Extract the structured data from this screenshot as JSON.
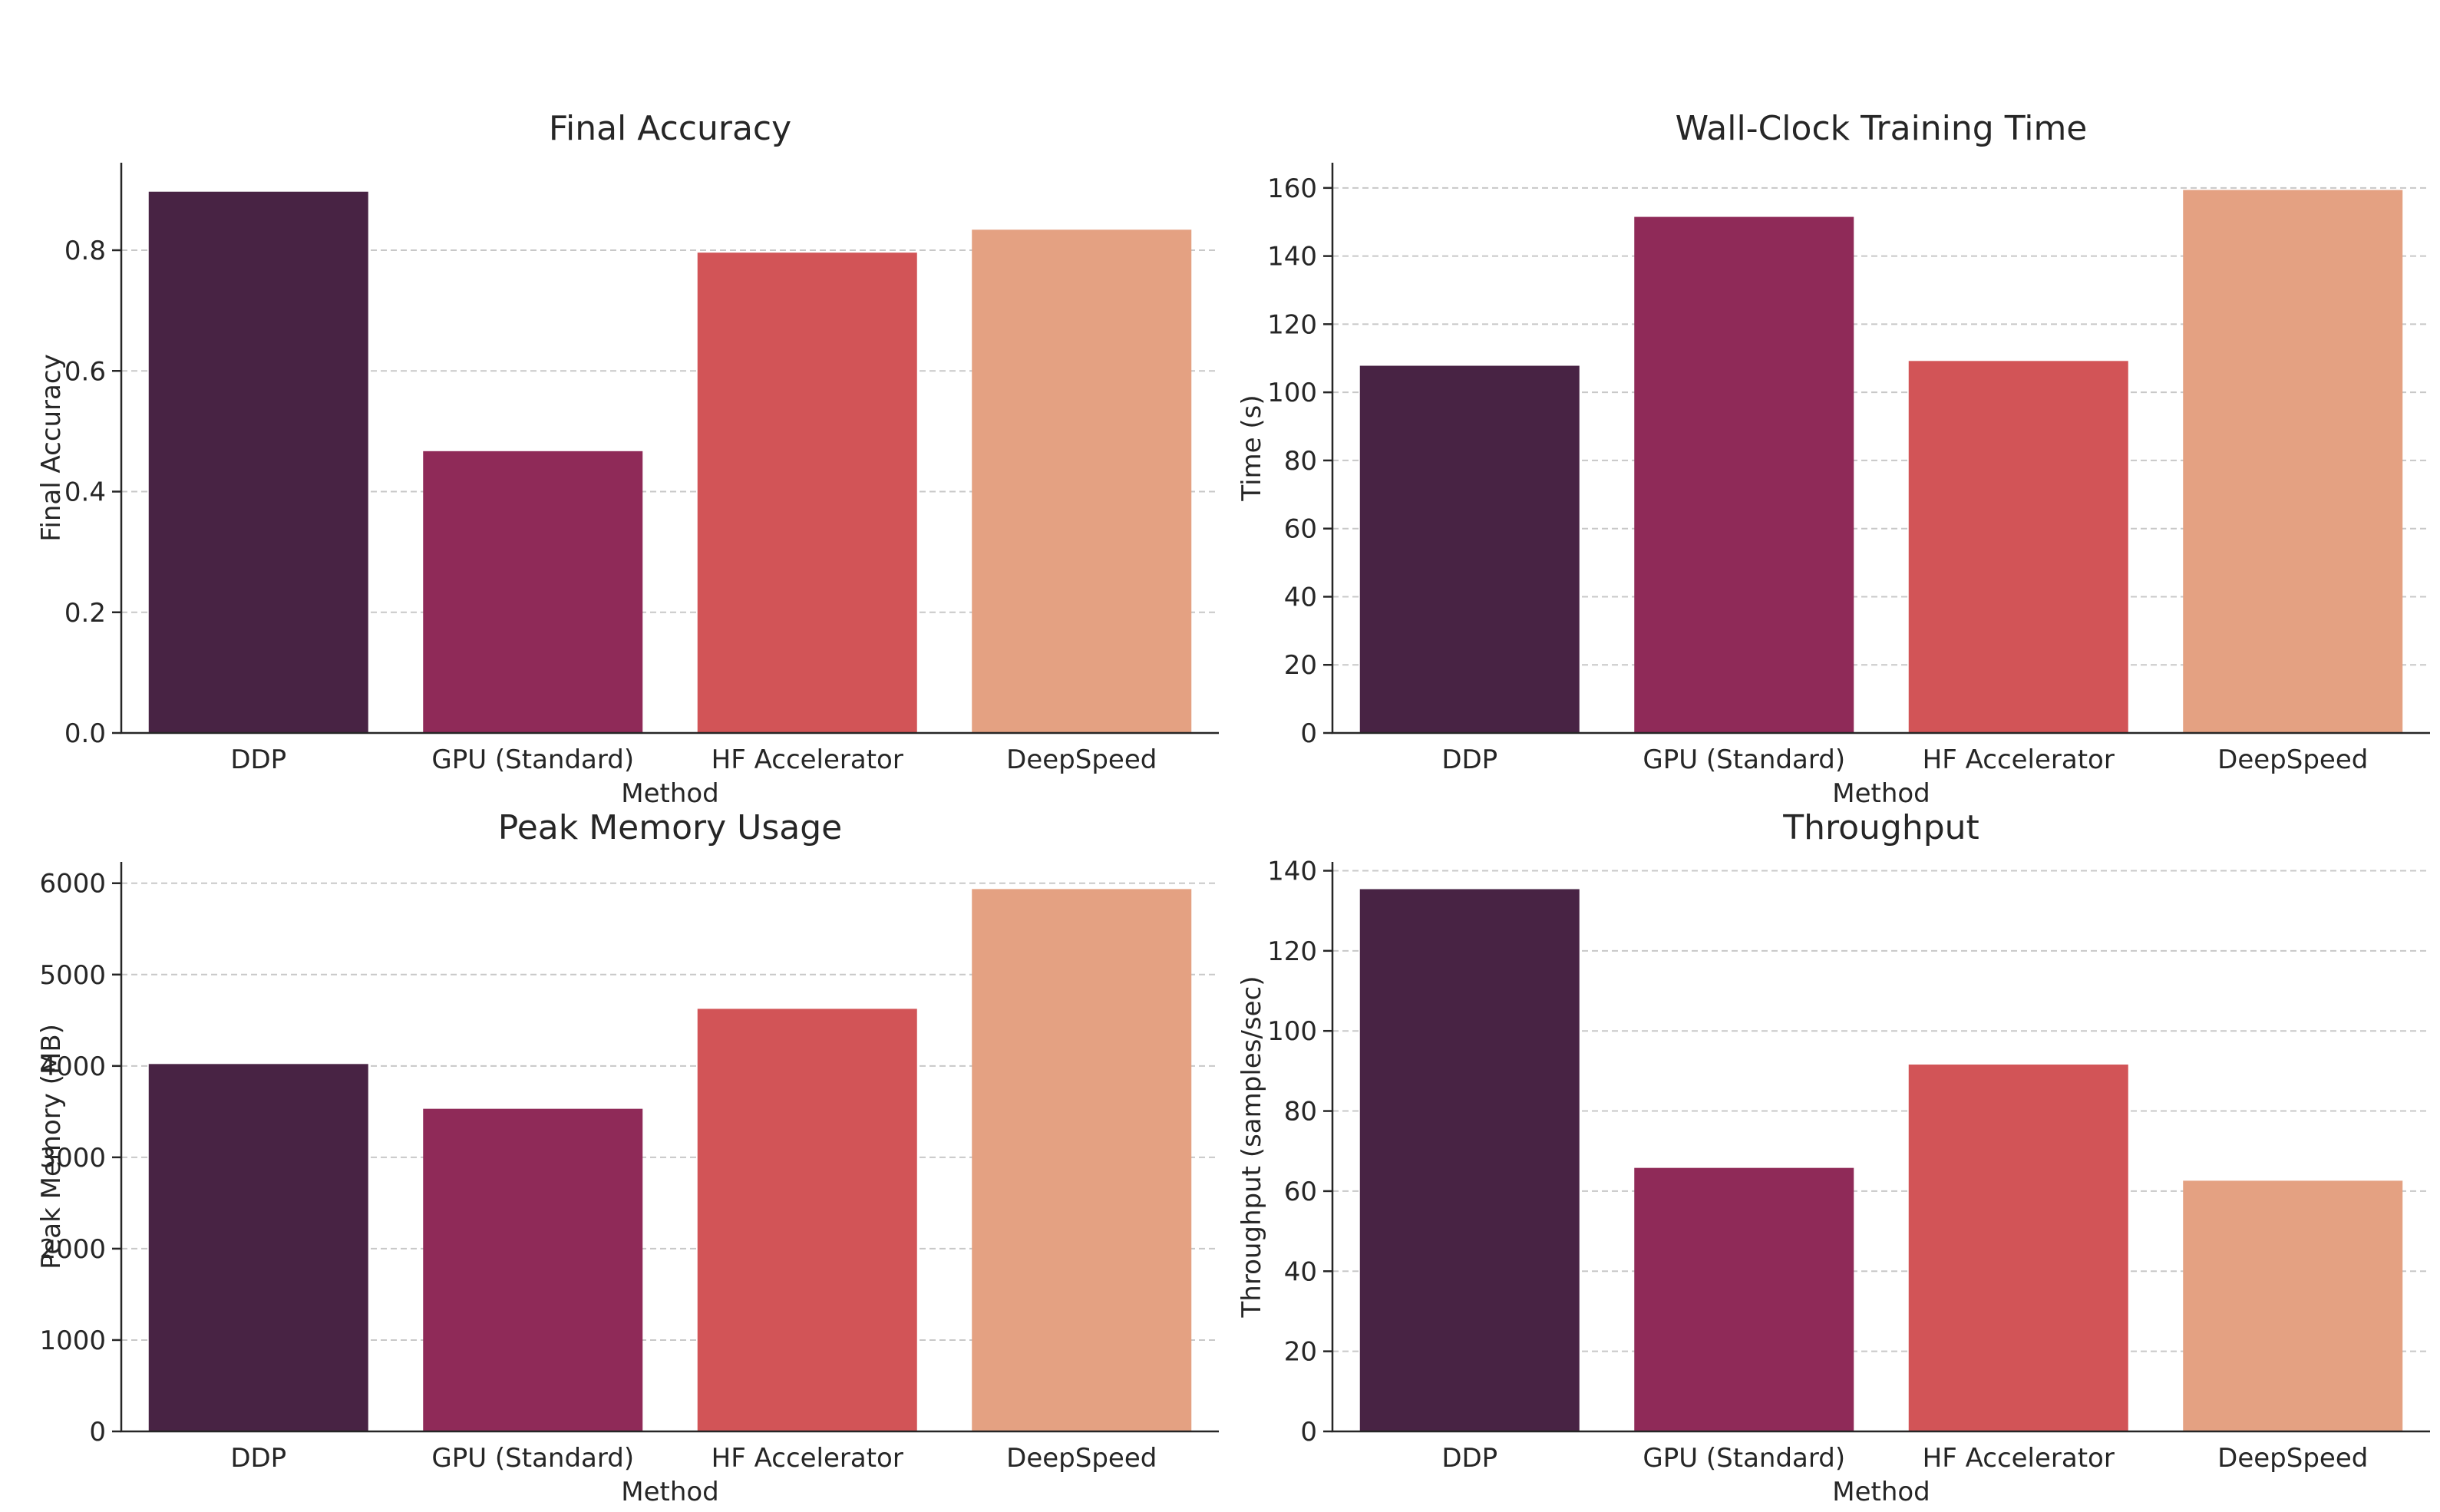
{
  "chart_data": [
    {
      "type": "bar",
      "title": "Final Accuracy",
      "xlabel": "Method",
      "ylabel": "Final Accuracy",
      "categories": [
        "DDP",
        "GPU (Standard)",
        "HF Accelerator",
        "DeepSpeed"
      ],
      "values": [
        0.897,
        0.467,
        0.796,
        0.834
      ],
      "ylim": [
        0,
        0.945
      ],
      "yticks": [
        0.0,
        0.2,
        0.4,
        0.6,
        0.8
      ],
      "ytick_labels": [
        "0.0",
        "0.2",
        "0.4",
        "0.6",
        "0.8"
      ],
      "grid": "y",
      "colors": [
        "#482344",
        "#8f2a58",
        "#d25457",
        "#e4a182"
      ]
    },
    {
      "type": "bar",
      "title": "Wall-Clock Training Time",
      "xlabel": "Method",
      "ylabel": "Time (s)",
      "categories": [
        "DDP",
        "GPU (Standard)",
        "HF Accelerator",
        "DeepSpeed"
      ],
      "values": [
        107.8,
        151.5,
        109.2,
        159.4
      ],
      "ylim": [
        0,
        167.4
      ],
      "yticks": [
        0,
        20,
        40,
        60,
        80,
        100,
        120,
        140,
        160
      ],
      "ytick_labels": [
        "0",
        "20",
        "40",
        "60",
        "80",
        "100",
        "120",
        "140",
        "160"
      ],
      "grid": "y",
      "colors": [
        "#482344",
        "#8f2a58",
        "#d25457",
        "#e4a182"
      ]
    },
    {
      "type": "bar",
      "title": "Peak Memory Usage",
      "xlabel": "Method",
      "ylabel": "Peak Memory (MB)",
      "categories": [
        "DDP",
        "GPU (Standard)",
        "HF Accelerator",
        "DeepSpeed"
      ],
      "values": [
        4021,
        3531,
        4625,
        5936
      ],
      "ylim": [
        0,
        6233
      ],
      "yticks": [
        0,
        1000,
        2000,
        3000,
        4000,
        5000,
        6000
      ],
      "ytick_labels": [
        "0",
        "1000",
        "2000",
        "3000",
        "4000",
        "5000",
        "6000"
      ],
      "grid": "y",
      "colors": [
        "#482344",
        "#8f2a58",
        "#d25457",
        "#e4a182"
      ]
    },
    {
      "type": "bar",
      "title": "Throughput",
      "xlabel": "Method",
      "ylabel": "Throughput (samples/sec)",
      "categories": [
        "DDP",
        "GPU (Standard)",
        "HF Accelerator",
        "DeepSpeed"
      ],
      "values": [
        135.4,
        65.8,
        91.6,
        62.6
      ],
      "ylim": [
        0,
        142.2
      ],
      "yticks": [
        0,
        20,
        40,
        60,
        80,
        100,
        120,
        140
      ],
      "ytick_labels": [
        "0",
        "20",
        "40",
        "60",
        "80",
        "100",
        "120",
        "140"
      ],
      "grid": "y",
      "colors": [
        "#482344",
        "#8f2a58",
        "#d25457",
        "#e4a182"
      ]
    }
  ]
}
